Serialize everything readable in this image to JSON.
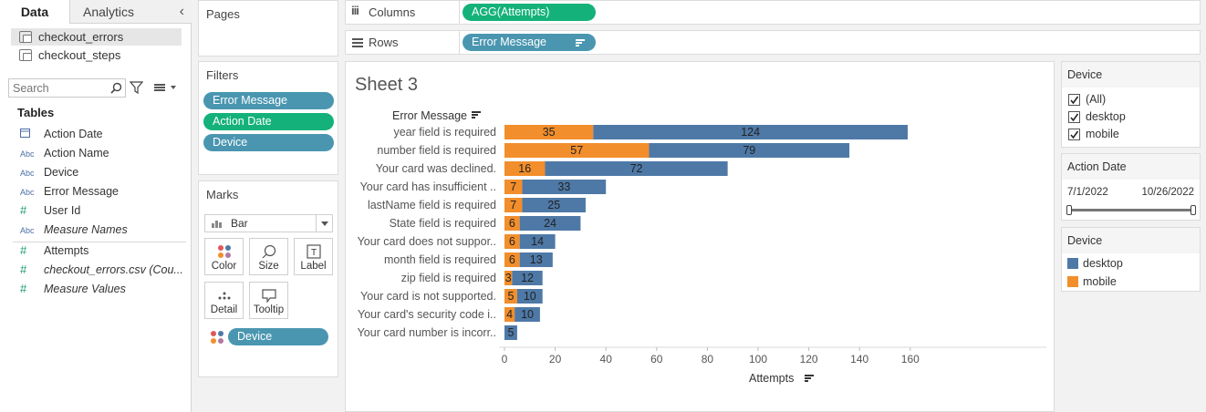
{
  "data_pane": {
    "tabs": [
      {
        "label": "Data"
      },
      {
        "label": "Analytics"
      }
    ],
    "collapse_glyph": "‹",
    "data_sources": [
      {
        "name": "checkout_errors"
      },
      {
        "name": "checkout_steps"
      }
    ],
    "search_placeholder": "Search",
    "tables_heading": "Tables",
    "fields": [
      {
        "type": "date",
        "icon": "calendar-icon",
        "name": "Action Date",
        "italic": false
      },
      {
        "type": "string",
        "icon": "abc-icon",
        "name": "Action Name",
        "italic": false
      },
      {
        "type": "string",
        "icon": "abc-icon",
        "name": "Device",
        "italic": false
      },
      {
        "type": "string",
        "icon": "abc-icon",
        "name": "Error Message",
        "italic": false
      },
      {
        "type": "number",
        "icon": "hash-icon",
        "name": "User Id",
        "italic": false
      },
      {
        "type": "string",
        "icon": "abc-icon",
        "name": "Measure Names",
        "italic": true
      }
    ],
    "measures": [
      {
        "type": "number",
        "icon": "hash-icon",
        "name": "Attempts",
        "italic": false
      },
      {
        "type": "number",
        "icon": "hash-icon",
        "name": "checkout_errors.csv (Cou...",
        "italic": true
      },
      {
        "type": "number",
        "icon": "hash-icon",
        "name": "Measure Values",
        "italic": true
      }
    ]
  },
  "pages": {
    "label": "Pages"
  },
  "filters": {
    "label": "Filters",
    "pills": [
      {
        "label": "Error Message",
        "color": "#4a96b0"
      },
      {
        "label": "Action Date",
        "color": "#14b27a"
      },
      {
        "label": "Device",
        "color": "#4a96b0"
      }
    ]
  },
  "marks": {
    "label": "Marks",
    "type": "Bar",
    "buttons": [
      {
        "label": "Color"
      },
      {
        "label": "Size"
      },
      {
        "label": "Label"
      },
      {
        "label": "Detail"
      },
      {
        "label": "Tooltip"
      }
    ],
    "color_pill": "Device"
  },
  "columns": {
    "label": "Columns",
    "pill": "AGG(Attempts)",
    "icon_glyph": "iii"
  },
  "rows": {
    "label": "Rows",
    "pill": "Error Message"
  },
  "sheet": {
    "title": "Sheet 3"
  },
  "device_filter": {
    "title": "Device",
    "options": [
      {
        "label": "(All)",
        "checked": true
      },
      {
        "label": "desktop",
        "checked": true
      },
      {
        "label": "mobile",
        "checked": true
      }
    ]
  },
  "date_filter": {
    "title": "Action Date",
    "start": "7/1/2022",
    "end": "10/26/2022"
  },
  "legend": {
    "title": "Device",
    "items": [
      {
        "label": "desktop",
        "color": "#4e79a7"
      },
      {
        "label": "mobile",
        "color": "#f28e2b"
      }
    ]
  },
  "chart_data": {
    "type": "bar",
    "orientation": "horizontal",
    "stacked": true,
    "row_header": "Error Message",
    "xlabel": "Attempts",
    "xlim": [
      0,
      160
    ],
    "xticks": [
      0,
      20,
      40,
      60,
      80,
      100,
      120,
      140,
      160
    ],
    "grid": false,
    "categories": [
      "year field is required",
      "number field is required",
      "Your card was declined.",
      "Your card has insufficient ..",
      "lastName field is required",
      "State field is required",
      "Your card does not suppor..",
      "month field is required",
      "zip field is required",
      "Your card is not supported.",
      "Your card's security code i..",
      "Your card number is incorr.."
    ],
    "series": [
      {
        "name": "mobile",
        "color": "#f28e2b",
        "values": [
          35,
          57,
          16,
          7,
          7,
          6,
          6,
          6,
          3,
          5,
          4,
          0
        ]
      },
      {
        "name": "desktop",
        "color": "#4e79a7",
        "values": [
          124,
          79,
          72,
          33,
          25,
          24,
          14,
          13,
          12,
          10,
          10,
          5
        ]
      }
    ]
  }
}
